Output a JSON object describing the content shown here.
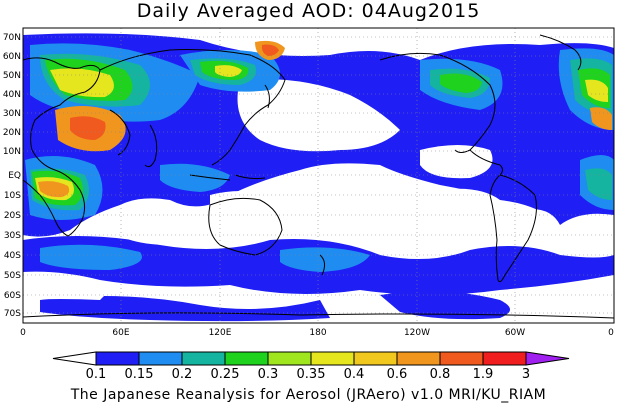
{
  "title": "Daily Averaged AOD: 04Aug2015",
  "footer": "The Japanese Reanalysis for Aerosol (JRAero) v1.0 MRI/KU_RIAM",
  "lat_labels": [
    "70N",
    "60N",
    "50N",
    "40N",
    "30N",
    "20N",
    "10N",
    "EQ",
    "10S",
    "20S",
    "30S",
    "40S",
    "50S",
    "60S",
    "70S"
  ],
  "lon_labels": [
    "0",
    "60E",
    "120E",
    "180",
    "120W",
    "60W",
    "0"
  ],
  "colorbar": {
    "labels": [
      "0.1",
      "0.15",
      "0.2",
      "0.25",
      "0.3",
      "0.35",
      "0.4",
      "0.6",
      "0.8",
      "1.9",
      "3"
    ],
    "colors": [
      "#ffffff",
      "#1e1ef5",
      "#1e8cf0",
      "#14b4a0",
      "#1ed21e",
      "#a0e61e",
      "#e6e61e",
      "#f0c81e",
      "#f0961e",
      "#f05a1e",
      "#f01e1e",
      "#a020f0"
    ]
  }
}
